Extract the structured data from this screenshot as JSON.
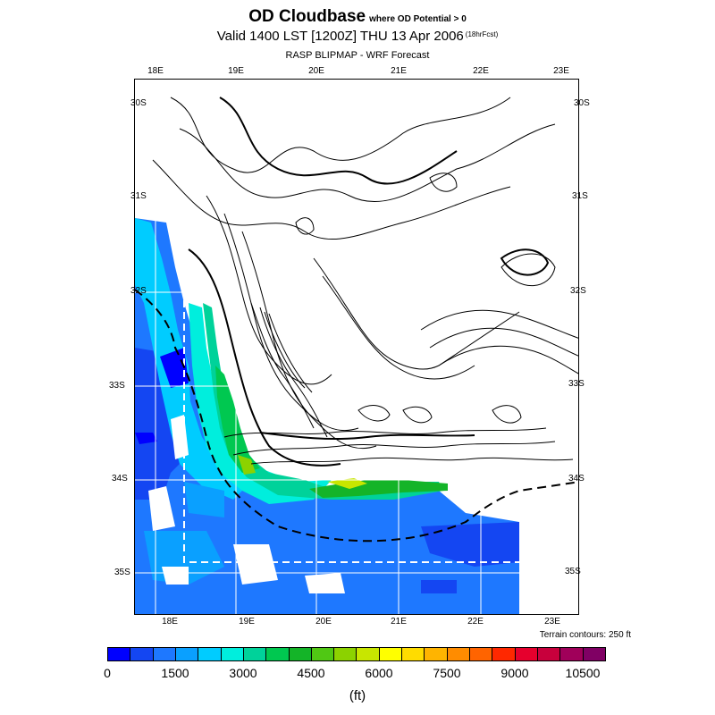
{
  "title": {
    "main": "OD Cloudbase",
    "condition": "where OD Potential > 0",
    "valid": "Valid 1400 LST [1200Z] THU 13 Apr 2006",
    "forecast_hours": "(18hrFcst)",
    "model": "RASP BLIPMAP - WRF Forecast"
  },
  "map": {
    "lon_labels": [
      "18E",
      "19E",
      "20E",
      "21E",
      "22E",
      "23E"
    ],
    "lat_labels_left": [
      "30S",
      "31S",
      "32S",
      "33S",
      "34S",
      "35S"
    ],
    "lat_labels_right": [
      "30S",
      "31S",
      "32S",
      "33S",
      "34S",
      "35S"
    ],
    "terrain_note": "Terrain contours: 250 ft"
  },
  "legend": {
    "tick_labels": [
      "0",
      "1500",
      "3000",
      "4500",
      "6000",
      "7500",
      "9000",
      "10500"
    ],
    "unit": "(ft)",
    "colors": [
      "#0000ff",
      "#1446f2",
      "#1e78ff",
      "#0aa0ff",
      "#00ccff",
      "#00eedd",
      "#00d29a",
      "#00c850",
      "#14b428",
      "#50c814",
      "#8cd200",
      "#c8e600",
      "#ffff00",
      "#ffdc00",
      "#ffb400",
      "#ff8c00",
      "#ff6400",
      "#ff2800",
      "#e6002d",
      "#c8003c",
      "#a0005a",
      "#800064"
    ]
  }
}
